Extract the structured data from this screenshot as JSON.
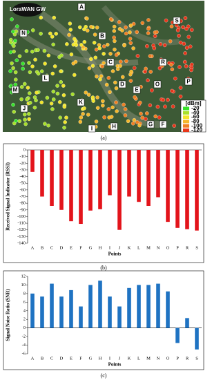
{
  "map": {
    "gateway": "LoraWAN GW",
    "caption": "(a)",
    "points": [
      "A",
      "B",
      "C",
      "D",
      "E",
      "F",
      "G",
      "H",
      "I",
      "J",
      "K",
      "L",
      "M",
      "N",
      "O",
      "P",
      "R",
      "S"
    ],
    "legend": {
      "title": "[dBm]",
      "items": [
        {
          "label": -20,
          "color": "#39e22b"
        },
        {
          "label": -40,
          "color": "#a8e02a"
        },
        {
          "label": -60,
          "color": "#f2e52a"
        },
        {
          "label": -80,
          "color": "#f5b72a"
        },
        {
          "label": -100,
          "color": "#f07f22"
        },
        {
          "label": -120,
          "color": "#e8361a"
        }
      ]
    }
  },
  "chart_data": [
    {
      "type": "bar",
      "caption": "(b)",
      "y_label": "Received Signal Indicator (RSSI)",
      "x_label": "Points",
      "color": "#e3141b",
      "categories": [
        "A",
        "B",
        "C",
        "D",
        "E",
        "F",
        "G",
        "H",
        "I",
        "J",
        "K",
        "L",
        "M",
        "N",
        "O",
        "P",
        "R",
        "S"
      ],
      "values": [
        -33,
        -70,
        -84,
        -90,
        -107,
        -111,
        -91,
        -89,
        -68,
        -120,
        -70,
        -78,
        -84,
        -71,
        -108,
        -117,
        -119,
        -121
      ],
      "ylim": [
        -140,
        0
      ],
      "yticks": [
        0,
        -10,
        -20,
        -30,
        -40,
        -50,
        -60,
        -70,
        -80,
        -90,
        -100,
        -110,
        -120,
        -130,
        -140
      ]
    },
    {
      "type": "bar",
      "caption": "(c)",
      "y_label": "Signal Noise Ratio (SNR)",
      "x_label": "Points",
      "color": "#1f73c2",
      "categories": [
        "A",
        "B",
        "C",
        "D",
        "E",
        "F",
        "G",
        "H",
        "I",
        "J",
        "K",
        "L",
        "M",
        "N",
        "O",
        "P",
        "R",
        "S"
      ],
      "values": [
        8,
        7.3,
        10.3,
        7.3,
        8.8,
        5,
        10,
        11,
        7.3,
        5,
        9.3,
        10,
        10,
        10.3,
        8.5,
        -3.5,
        2.3,
        -5
      ],
      "ylim": [
        -6,
        12
      ],
      "yticks": [
        -6,
        -4,
        -2,
        0,
        2,
        4,
        6,
        8,
        10,
        12
      ]
    }
  ]
}
